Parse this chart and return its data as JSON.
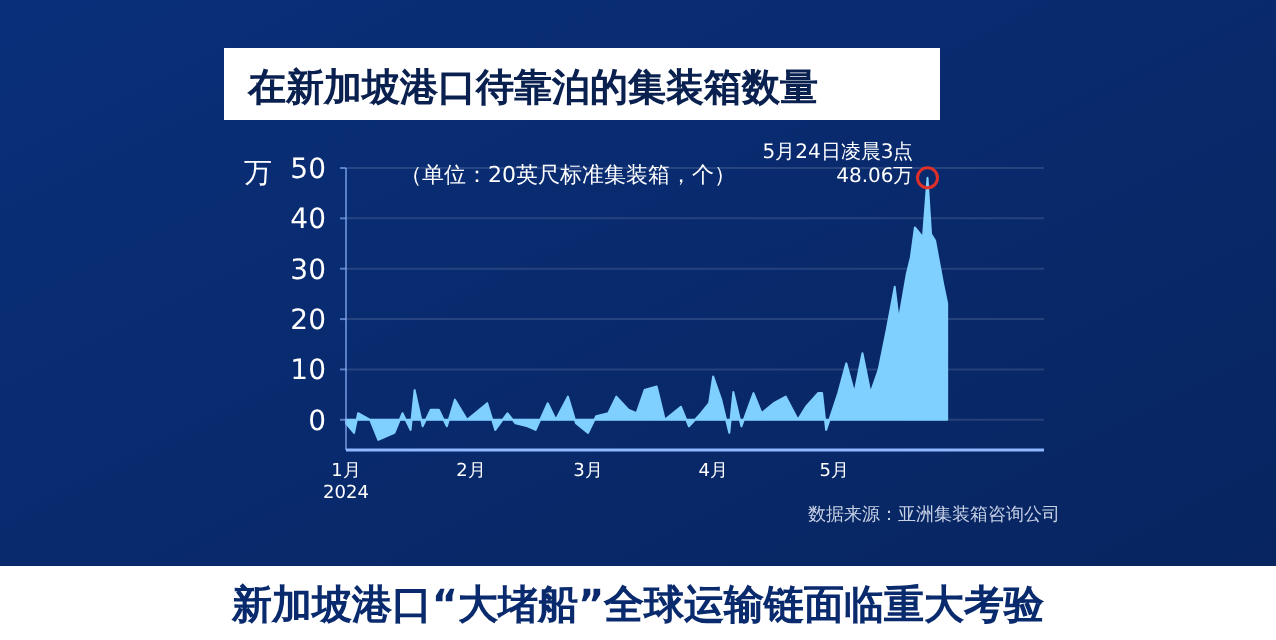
{
  "chart_data": {
    "type": "area",
    "title": "在新加坡港口待靠泊的集装箱数量",
    "subtitle": "（单位：20英尺标准集装箱，个）",
    "ylabel": "万",
    "x": [
      "2024-01-01",
      "2024-01-03",
      "2024-01-04",
      "2024-01-07",
      "2024-01-09",
      "2024-01-13",
      "2024-01-15",
      "2024-01-17",
      "2024-01-18",
      "2024-01-20",
      "2024-01-22",
      "2024-01-24",
      "2024-01-26",
      "2024-01-28",
      "2024-01-31",
      "2024-02-02",
      "2024-02-05",
      "2024-02-07",
      "2024-02-10",
      "2024-02-12",
      "2024-02-15",
      "2024-02-17",
      "2024-02-20",
      "2024-02-22",
      "2024-02-25",
      "2024-02-27",
      "2024-03-01",
      "2024-03-03",
      "2024-03-06",
      "2024-03-08",
      "2024-03-11",
      "2024-03-13",
      "2024-03-15",
      "2024-03-18",
      "2024-03-20",
      "2024-03-24",
      "2024-03-26",
      "2024-03-29",
      "2024-03-31",
      "2024-04-01",
      "2024-04-03",
      "2024-04-05",
      "2024-04-06",
      "2024-04-08",
      "2024-04-11",
      "2024-04-13",
      "2024-04-16",
      "2024-04-19",
      "2024-04-22",
      "2024-04-24",
      "2024-04-27",
      "2024-04-28",
      "2024-04-29",
      "2024-05-02",
      "2024-05-04",
      "2024-05-06",
      "2024-05-08",
      "2024-05-10",
      "2024-05-12",
      "2024-05-14",
      "2024-05-16",
      "2024-05-17",
      "2024-05-19",
      "2024-05-20",
      "2024-05-21",
      "2024-05-23",
      "2024-05-24T03:00",
      "2024-05-25",
      "2024-05-26",
      "2024-05-28",
      "2024-05-29"
    ],
    "values": [
      -0.7,
      -2.6,
      1.3,
      0,
      -4,
      -2.6,
      1.3,
      -2,
      5.9,
      -1.3,
      2,
      2,
      -1.3,
      4,
      0,
      1.3,
      3.3,
      -2,
      1.3,
      -0.7,
      -1.3,
      -2,
      3.3,
      0,
      4.6,
      -0.7,
      -2.6,
      0.7,
      1.3,
      4.6,
      2,
      1.3,
      5.9,
      6.6,
      0,
      2.6,
      -1.3,
      1.3,
      3.3,
      8.6,
      4,
      -2.6,
      5.5,
      -1.3,
      5.3,
      1.3,
      3.3,
      4.6,
      0,
      2.6,
      5.3,
      5.3,
      -2,
      5.3,
      11.2,
      5.3,
      13.2,
      5.3,
      9.9,
      17.8,
      26.4,
      19.8,
      29,
      32.3,
      38.2,
      36.2,
      48.06,
      36.9,
      35.6,
      27,
      23.1
    ],
    "color": "#7fcfff",
    "xlim": [
      "2024-01-01",
      "2024-06-22"
    ],
    "xticks": [
      {
        "value": "2024-01-01",
        "label": "1月\n2024"
      },
      {
        "value": "2024-02-01",
        "label": "2月"
      },
      {
        "value": "2024-03-01",
        "label": "3月"
      },
      {
        "value": "2024-04-01",
        "label": "4月"
      },
      {
        "value": "2024-05-01",
        "label": "5月"
      }
    ],
    "ylim": [
      -6,
      50
    ],
    "yticks": [
      0,
      10,
      20,
      30,
      40,
      50
    ],
    "grid": "y",
    "annotations": [
      {
        "text": "5月24日凌晨3点\n48.06万",
        "x": "2024-05-24T03:00",
        "y": 48.06
      },
      "数据来源：亚洲集装箱咨询公司",
      "新加坡港口“大堵船”全球运输链面临重大考验"
    ]
  }
}
